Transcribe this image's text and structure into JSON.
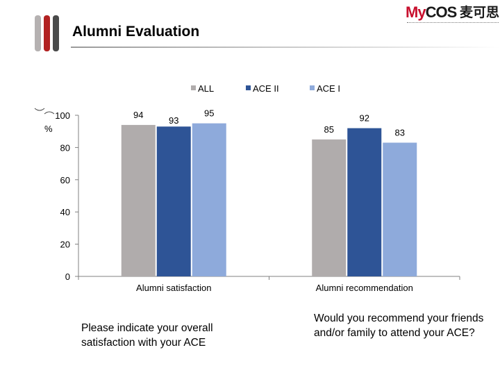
{
  "title": "Alumni Evaluation",
  "logo": {
    "word_prefix": "My",
    "word_suffix": "COS",
    "chinese": "麦可思"
  },
  "colors": {
    "all": "#b0acac",
    "ace2": "#2e5496",
    "ace1": "#8eaadb",
    "axis": "#808080"
  },
  "chart_data": {
    "type": "bar",
    "categories": [
      "Alumni satisfaction",
      "Alumni recommendation"
    ],
    "series": [
      {
        "name": "ALL",
        "values": [
          94,
          85
        ]
      },
      {
        "name": "ACE II",
        "values": [
          93,
          92
        ]
      },
      {
        "name": "ACE I",
        "values": [
          95,
          83
        ]
      }
    ],
    "ylim": [
      0,
      100
    ],
    "yticks": [
      0,
      20,
      40,
      60,
      80,
      100
    ],
    "ylabel": "%",
    "legend_position": "top",
    "grid": false
  },
  "questions": [
    "Please indicate your overall satisfaction with your ACE",
    "Would you recommend your friends and/or family to attend your ACE?"
  ]
}
